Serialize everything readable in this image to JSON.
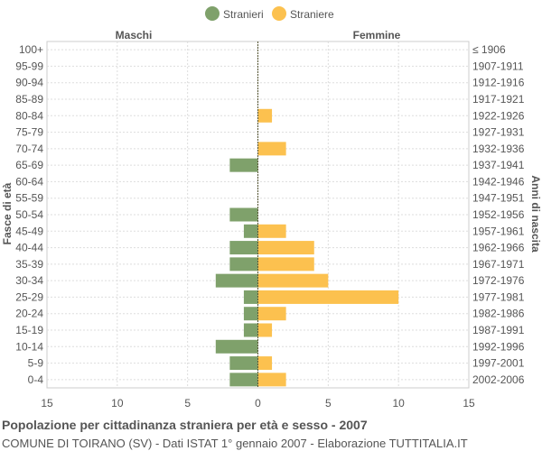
{
  "chart_data": {
    "type": "bar",
    "orientation": "horizontal",
    "layout": "population-pyramid",
    "title": "Popolazione per cittadinanza straniera per età e sesso - 2007",
    "subtitle": "COMUNE DI TOIRANO (SV) - Dati ISTAT 1° gennaio 2007 - Elaborazione TUTTITALIA.IT",
    "ylabel_left": "Fasce di età",
    "ylabel_right": "Anni di nascita",
    "side_labels": {
      "left": "Maschi",
      "right": "Femmine"
    },
    "age_groups": [
      "100+",
      "95-99",
      "90-94",
      "85-89",
      "80-84",
      "75-79",
      "70-74",
      "65-69",
      "60-64",
      "55-59",
      "50-54",
      "45-49",
      "40-44",
      "35-39",
      "30-34",
      "25-29",
      "20-24",
      "15-19",
      "10-14",
      "5-9",
      "0-4"
    ],
    "birth_years": [
      "≤ 1906",
      "1907-1911",
      "1912-1916",
      "1917-1921",
      "1922-1926",
      "1927-1931",
      "1932-1936",
      "1937-1941",
      "1942-1946",
      "1947-1951",
      "1952-1956",
      "1957-1961",
      "1962-1966",
      "1967-1971",
      "1972-1976",
      "1977-1981",
      "1982-1986",
      "1987-1991",
      "1992-1996",
      "1997-2001",
      "2002-2006"
    ],
    "series": [
      {
        "name": "Stranieri",
        "color": "#7fa16b",
        "values": [
          0,
          0,
          0,
          0,
          0,
          0,
          0,
          2,
          0,
          0,
          2,
          1,
          2,
          2,
          3,
          1,
          1,
          1,
          3,
          2,
          2
        ]
      },
      {
        "name": "Straniere",
        "color": "#fcc14f",
        "values": [
          0,
          0,
          0,
          0,
          1,
          0,
          2,
          0,
          0,
          0,
          0,
          2,
          4,
          4,
          5,
          10,
          2,
          1,
          0,
          1,
          2
        ]
      }
    ],
    "x_ticks": [
      "15",
      "10",
      "5",
      "0",
      "5",
      "10",
      "15"
    ],
    "xlim": [
      -15,
      15
    ],
    "grid": true,
    "legend_position": "top"
  }
}
